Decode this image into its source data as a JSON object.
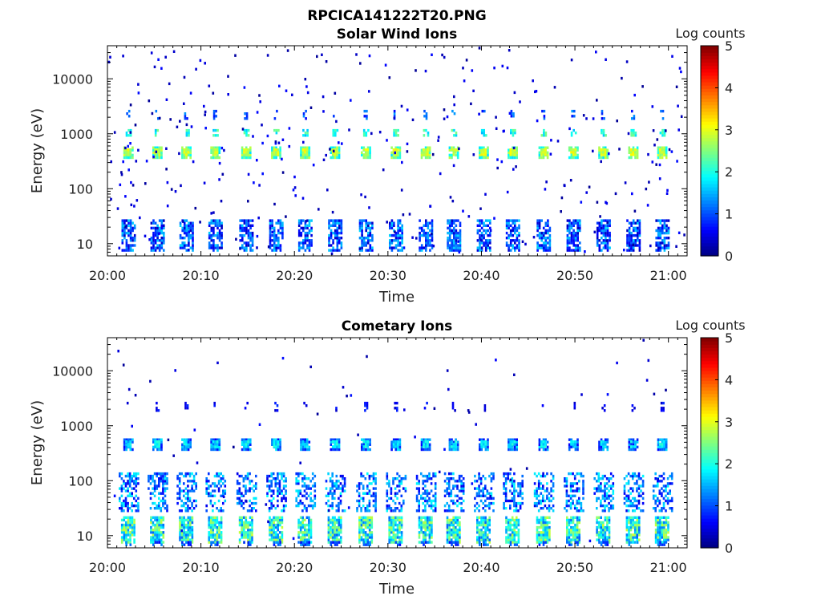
{
  "figure_title": "RPCICA141222T20.PNG",
  "chart_data": [
    {
      "type": "heatmap",
      "title": "Solar Wind Ions",
      "xlabel": "Time",
      "ylabel": "Energy (eV)",
      "x_ticks": [
        "20:00",
        "20:10",
        "20:20",
        "20:30",
        "20:40",
        "20:50",
        "21:00"
      ],
      "x_range_minutes": [
        0,
        62
      ],
      "y_scale": "log",
      "y_ticks": [
        10,
        100,
        1000,
        10000
      ],
      "ylim": [
        6,
        40000
      ],
      "colorbar": {
        "label": "Log counts",
        "range": [
          0,
          5
        ],
        "ticks": [
          0,
          1,
          2,
          3,
          4,
          5
        ],
        "colormap": "jet"
      },
      "pattern": {
        "sweep_times_min": [
          2.2,
          5.3,
          8.4,
          11.5,
          14.8,
          18.0,
          21.1,
          24.3,
          27.6,
          30.8,
          34.0,
          37.0,
          40.2,
          43.3,
          46.6,
          49.8,
          53.0,
          56.2,
          59.3
        ],
        "features": [
          {
            "name": "solar-wind-peak",
            "energy_ev": 500,
            "log_counts": 2.9
          },
          {
            "name": "alpha-band",
            "energy_ev": 1100,
            "log_counts": 2.0
          },
          {
            "name": "low-energy-band",
            "energy_ev": [
              8,
              28
            ],
            "log_counts": 1.0
          }
        ]
      }
    },
    {
      "type": "heatmap",
      "title": "Cometary Ions",
      "xlabel": "Time",
      "ylabel": "Energy (eV)",
      "x_ticks": [
        "20:00",
        "20:10",
        "20:20",
        "20:30",
        "20:40",
        "20:50",
        "21:00"
      ],
      "x_range_minutes": [
        0,
        62
      ],
      "y_scale": "log",
      "y_ticks": [
        10,
        100,
        1000,
        10000
      ],
      "ylim": [
        6,
        40000
      ],
      "colorbar": {
        "label": "Log counts",
        "range": [
          0,
          5
        ],
        "ticks": [
          0,
          1,
          2,
          3,
          4,
          5
        ],
        "colormap": "jet"
      },
      "pattern": {
        "sweep_times_min": [
          2.2,
          5.3,
          8.4,
          11.5,
          14.8,
          18.0,
          21.1,
          24.3,
          27.6,
          30.8,
          34.0,
          37.0,
          40.2,
          43.3,
          46.6,
          49.8,
          53.0,
          56.2,
          59.3
        ],
        "features": [
          {
            "name": "solar-wind-peak",
            "energy_ev": 500,
            "log_counts": 1.8
          },
          {
            "name": "cometary-band",
            "energy_ev": [
              8,
              25
            ],
            "log_counts": 2.6
          },
          {
            "name": "cometary-scatter",
            "energy_ev": [
              30,
              150
            ],
            "log_counts": 1.2
          }
        ]
      }
    }
  ]
}
